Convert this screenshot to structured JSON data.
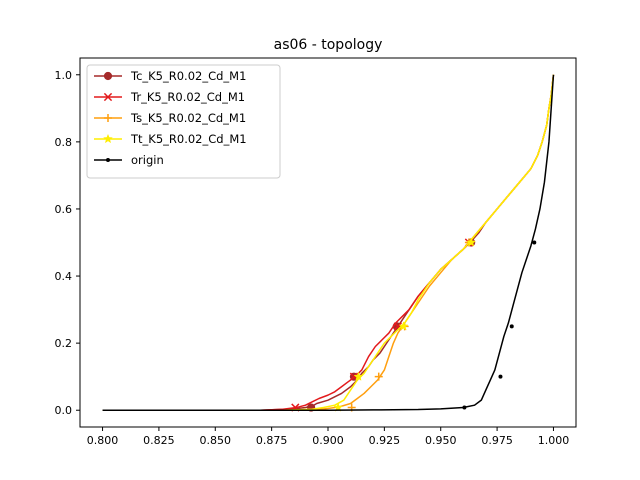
{
  "chart_data": {
    "type": "line",
    "title": "as06 - topology",
    "xlabel": "",
    "ylabel": "",
    "xlim": [
      0.79,
      1.01
    ],
    "ylim": [
      -0.05,
      1.05
    ],
    "x_ticks": [
      0.8,
      0.825,
      0.85,
      0.875,
      0.9,
      0.925,
      0.95,
      0.975,
      1.0
    ],
    "x_tick_labels": [
      "0.800",
      "0.825",
      "0.850",
      "0.875",
      "0.900",
      "0.925",
      "0.950",
      "0.975",
      "1.000"
    ],
    "y_ticks": [
      0.0,
      0.2,
      0.4,
      0.6,
      0.8,
      1.0
    ],
    "y_tick_labels": [
      "0.0",
      "0.2",
      "0.4",
      "0.6",
      "0.8",
      "1.0"
    ],
    "grid": false,
    "legend_position": "top-left",
    "series": [
      {
        "name": "Tc_K5_R0.02_Cd_M1",
        "color": "#a52a2a",
        "marker": "circle",
        "x": [
          0.8,
          0.87,
          0.885,
          0.89,
          0.893,
          0.895,
          0.9,
          0.903,
          0.906,
          0.91,
          0.913,
          0.915,
          0.918,
          0.92,
          0.923,
          0.926,
          0.93,
          0.933,
          0.936,
          0.94,
          0.945,
          0.95,
          0.955,
          0.96,
          0.963,
          0.967,
          0.97,
          0.975,
          0.98,
          0.985,
          0.99,
          0.993,
          0.995,
          0.997,
          0.998,
          0.999,
          1.0
        ],
        "y": [
          0.0,
          0.0,
          0.004,
          0.008,
          0.012,
          0.02,
          0.03,
          0.04,
          0.05,
          0.07,
          0.09,
          0.11,
          0.13,
          0.15,
          0.17,
          0.2,
          0.24,
          0.27,
          0.3,
          0.34,
          0.38,
          0.42,
          0.45,
          0.48,
          0.5,
          0.53,
          0.56,
          0.6,
          0.64,
          0.68,
          0.72,
          0.76,
          0.8,
          0.85,
          0.9,
          0.94,
          1.0
        ],
        "markers": [
          [
            0.8925,
            0.008
          ],
          [
            0.9115,
            0.1
          ],
          [
            0.9305,
            0.25
          ],
          [
            0.9635,
            0.5
          ]
        ]
      },
      {
        "name": "Tr_K5_R0.02_Cd_M1",
        "color": "#e31a1c",
        "marker": "x",
        "x": [
          0.8,
          0.87,
          0.88,
          0.886,
          0.89,
          0.893,
          0.896,
          0.9,
          0.903,
          0.906,
          0.909,
          0.912,
          0.915,
          0.918,
          0.921,
          0.924,
          0.927,
          0.93,
          0.933,
          0.936,
          0.94,
          0.945,
          0.95,
          0.955,
          0.96,
          0.965,
          0.97,
          0.975,
          0.98,
          0.985,
          0.99,
          0.993,
          0.995,
          0.997,
          0.998,
          0.999,
          1.0
        ],
        "y": [
          0.0,
          0.0,
          0.003,
          0.008,
          0.015,
          0.025,
          0.035,
          0.045,
          0.055,
          0.07,
          0.085,
          0.1,
          0.12,
          0.16,
          0.19,
          0.21,
          0.23,
          0.26,
          0.28,
          0.3,
          0.34,
          0.38,
          0.42,
          0.45,
          0.48,
          0.52,
          0.56,
          0.6,
          0.64,
          0.68,
          0.72,
          0.76,
          0.8,
          0.85,
          0.9,
          0.94,
          1.0
        ],
        "markers": [
          [
            0.8855,
            0.008
          ],
          [
            0.9115,
            0.1
          ],
          [
            0.931,
            0.25
          ],
          [
            0.9625,
            0.5
          ]
        ]
      },
      {
        "name": "Ts_K5_R0.02_Cd_M1",
        "color": "#ff9f0f",
        "marker": "plus",
        "x": [
          0.8,
          0.88,
          0.895,
          0.9,
          0.905,
          0.91,
          0.913,
          0.916,
          0.919,
          0.922,
          0.925,
          0.927,
          0.929,
          0.931,
          0.933,
          0.936,
          0.94,
          0.945,
          0.95,
          0.955,
          0.96,
          0.965,
          0.97,
          0.975,
          0.98,
          0.985,
          0.99,
          0.993,
          0.995,
          0.997,
          0.998,
          0.999,
          1.0
        ],
        "y": [
          0.0,
          0.0,
          0.002,
          0.005,
          0.01,
          0.02,
          0.035,
          0.05,
          0.07,
          0.09,
          0.12,
          0.16,
          0.2,
          0.23,
          0.25,
          0.28,
          0.32,
          0.37,
          0.41,
          0.45,
          0.48,
          0.52,
          0.56,
          0.6,
          0.64,
          0.68,
          0.72,
          0.76,
          0.8,
          0.85,
          0.9,
          0.94,
          1.0
        ],
        "markers": [
          [
            0.9105,
            0.008
          ],
          [
            0.9225,
            0.1
          ],
          [
            0.934,
            0.25
          ],
          [
            0.9625,
            0.5
          ]
        ]
      },
      {
        "name": "Tt_K5_R0.02_Cd_M1",
        "color": "#ffee00",
        "marker": "star",
        "x": [
          0.8,
          0.88,
          0.893,
          0.898,
          0.903,
          0.907,
          0.91,
          0.913,
          0.916,
          0.919,
          0.922,
          0.925,
          0.928,
          0.931,
          0.934,
          0.937,
          0.94,
          0.945,
          0.95,
          0.955,
          0.96,
          0.965,
          0.97,
          0.975,
          0.98,
          0.985,
          0.99,
          0.993,
          0.995,
          0.997,
          0.998,
          0.999,
          1.0
        ],
        "y": [
          0.0,
          0.0,
          0.003,
          0.008,
          0.015,
          0.03,
          0.06,
          0.09,
          0.11,
          0.14,
          0.17,
          0.2,
          0.22,
          0.24,
          0.26,
          0.29,
          0.33,
          0.38,
          0.42,
          0.45,
          0.48,
          0.52,
          0.56,
          0.6,
          0.64,
          0.68,
          0.72,
          0.76,
          0.8,
          0.85,
          0.9,
          0.94,
          1.0
        ],
        "markers": [
          [
            0.9045,
            0.008
          ],
          [
            0.9135,
            0.1
          ],
          [
            0.9335,
            0.25
          ],
          [
            0.9635,
            0.5
          ]
        ]
      },
      {
        "name": "origin",
        "color": "#000000",
        "marker": "dot",
        "x": [
          0.8,
          0.9,
          0.92,
          0.94,
          0.95,
          0.96,
          0.965,
          0.968,
          0.97,
          0.972,
          0.974,
          0.976,
          0.978,
          0.98,
          0.982,
          0.984,
          0.986,
          0.988,
          0.99,
          0.992,
          0.994,
          0.996,
          0.998,
          0.999,
          1.0
        ],
        "y": [
          0.0,
          0.0,
          0.001,
          0.002,
          0.004,
          0.008,
          0.015,
          0.03,
          0.06,
          0.09,
          0.12,
          0.17,
          0.22,
          0.26,
          0.31,
          0.36,
          0.41,
          0.45,
          0.49,
          0.54,
          0.6,
          0.68,
          0.8,
          0.9,
          1.0
        ],
        "markers": [
          [
            0.9605,
            0.008
          ],
          [
            0.9765,
            0.1
          ],
          [
            0.9815,
            0.25
          ],
          [
            0.9915,
            0.5
          ]
        ]
      }
    ]
  }
}
